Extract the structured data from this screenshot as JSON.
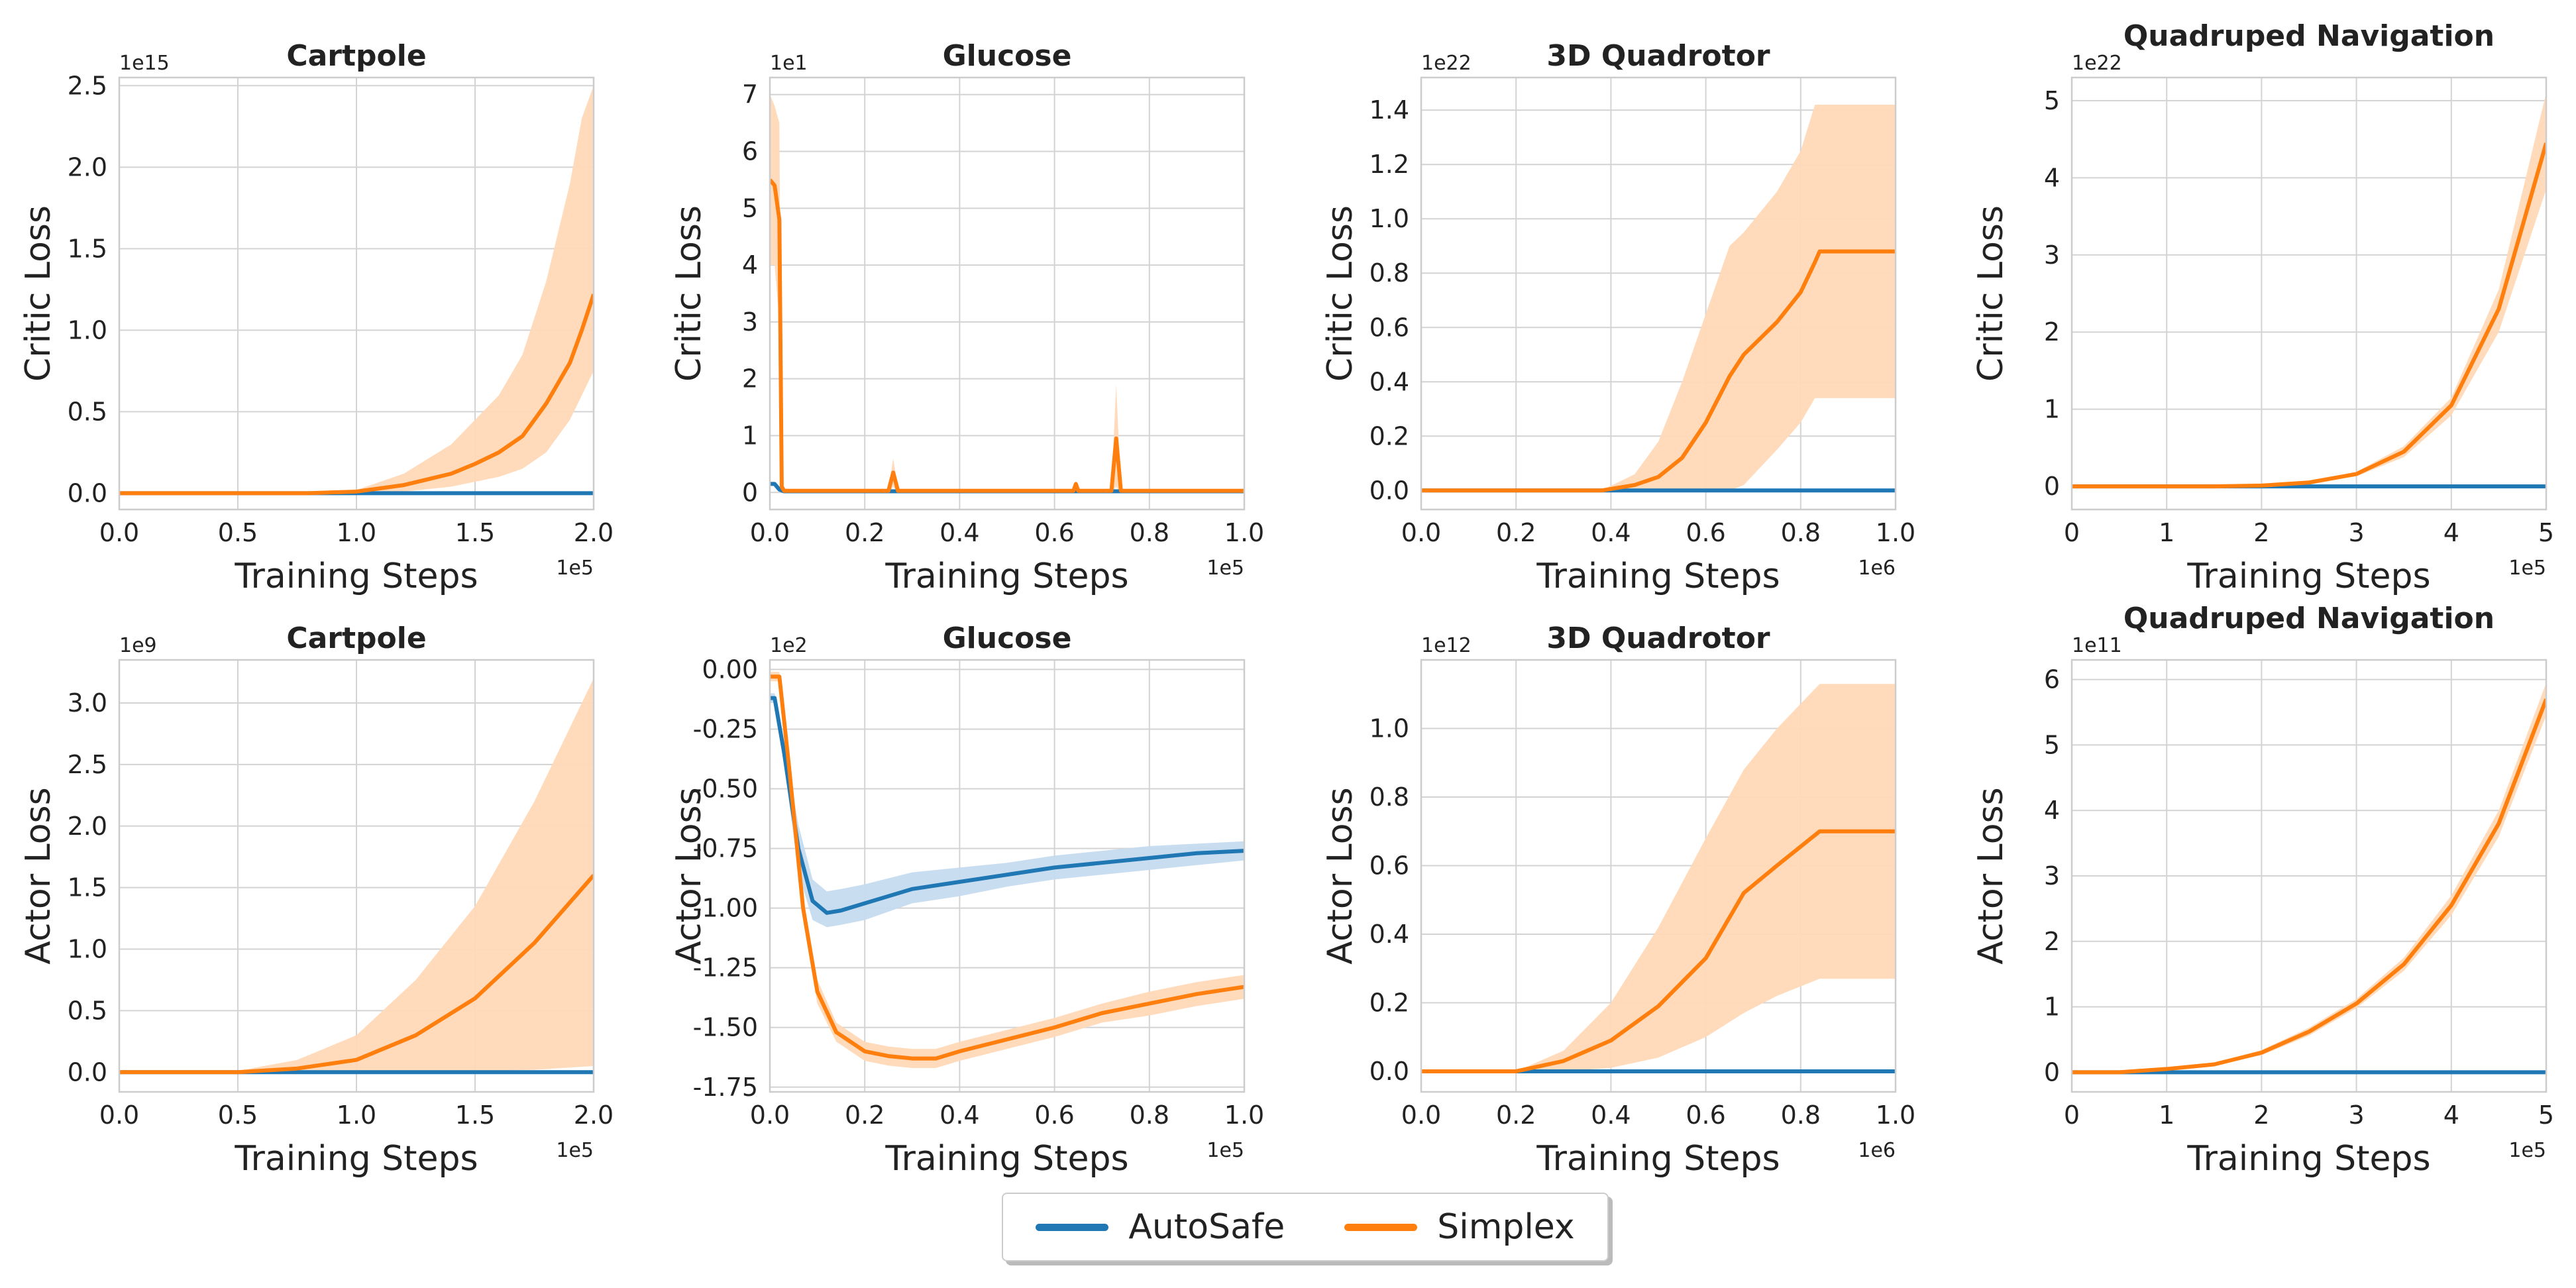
{
  "colors": {
    "autosafe": "#1f77b4",
    "simplex": "#ff7f0e",
    "band": "#ffd9b8",
    "band_blue": "#c6dbef",
    "grid": "#d3d3d3",
    "spine": "#cccccc"
  },
  "legend": {
    "items": [
      {
        "label": "AutoSafe",
        "color": "#1f77b4"
      },
      {
        "label": "Simplex",
        "color": "#ff7f0e"
      }
    ]
  },
  "chart_data": [
    {
      "type": "line",
      "title": "Cartpole",
      "xlabel": "Training Steps",
      "ylabel": "Critic Loss",
      "x_offset": "1e5",
      "y_offset": "1e15",
      "xlim": [
        0,
        2.0
      ],
      "ylim": [
        -0.1,
        2.55
      ],
      "xticks": [
        "0.0",
        "0.5",
        "1.0",
        "1.5",
        "2.0"
      ],
      "yticks": [
        "0.0",
        "0.5",
        "1.0",
        "1.5",
        "2.0",
        "2.5"
      ],
      "series": [
        {
          "name": "AutoSafe",
          "x": [
            0,
            2.0
          ],
          "y": [
            0,
            0
          ]
        },
        {
          "name": "Simplex",
          "x": [
            0,
            0.8,
            1.0,
            1.2,
            1.4,
            1.5,
            1.6,
            1.7,
            1.8,
            1.9,
            1.95,
            2.0
          ],
          "y": [
            0,
            0,
            0.01,
            0.05,
            0.12,
            0.18,
            0.25,
            0.35,
            0.55,
            0.8,
            1.0,
            1.22
          ],
          "band_upper": [
            0,
            0,
            0.02,
            0.12,
            0.3,
            0.45,
            0.6,
            0.85,
            1.3,
            1.9,
            2.3,
            2.5
          ],
          "band_lower": [
            0,
            0,
            0,
            0.01,
            0.04,
            0.07,
            0.1,
            0.15,
            0.25,
            0.45,
            0.6,
            0.75
          ]
        }
      ]
    },
    {
      "type": "line",
      "title": "Glucose",
      "xlabel": "Training Steps",
      "ylabel": "Critic Loss",
      "x_offset": "1e5",
      "y_offset": "1e1",
      "xlim": [
        0,
        1.0
      ],
      "ylim": [
        -0.3,
        7.3
      ],
      "xticks": [
        "0.0",
        "0.2",
        "0.4",
        "0.6",
        "0.8",
        "1.0"
      ],
      "yticks": [
        "0",
        "1",
        "2",
        "3",
        "4",
        "5",
        "6",
        "7"
      ],
      "series": [
        {
          "name": "AutoSafe",
          "x": [
            0,
            0.01,
            0.02,
            0.03,
            1.0
          ],
          "y": [
            0.15,
            0.15,
            0.05,
            0.02,
            0.02
          ]
        },
        {
          "name": "Simplex",
          "x": [
            0,
            0.01,
            0.02,
            0.025,
            0.03,
            0.25,
            0.26,
            0.27,
            0.64,
            0.645,
            0.65,
            0.72,
            0.73,
            0.74,
            1.0
          ],
          "y": [
            5.5,
            5.4,
            4.8,
            0.1,
            0.03,
            0.03,
            0.35,
            0.03,
            0.03,
            0.15,
            0.03,
            0.03,
            0.95,
            0.03,
            0.03
          ],
          "band_upper": [
            7.0,
            6.8,
            6.5,
            0.2,
            0.05,
            0.05,
            0.6,
            0.05,
            0.05,
            0.2,
            0.05,
            0.05,
            1.9,
            0.05,
            0.05
          ],
          "band_lower": [
            4.0,
            4.0,
            3.0,
            0,
            0,
            0,
            0.1,
            0,
            0,
            0.05,
            0,
            0,
            0.1,
            0,
            0
          ]
        }
      ]
    },
    {
      "type": "line",
      "title": "3D Quadrotor",
      "xlabel": "Training Steps",
      "ylabel": "Critic Loss",
      "x_offset": "1e6",
      "y_offset": "1e22",
      "xlim": [
        0,
        1.0
      ],
      "ylim": [
        -0.07,
        1.52
      ],
      "xticks": [
        "0.0",
        "0.2",
        "0.4",
        "0.6",
        "0.8",
        "1.0"
      ],
      "yticks": [
        "0.0",
        "0.2",
        "0.4",
        "0.6",
        "0.8",
        "1.0",
        "1.2",
        "1.4"
      ],
      "series": [
        {
          "name": "AutoSafe",
          "x": [
            0,
            1.0
          ],
          "y": [
            0,
            0
          ]
        },
        {
          "name": "Simplex",
          "x": [
            0,
            0.38,
            0.45,
            0.5,
            0.55,
            0.6,
            0.65,
            0.68,
            0.75,
            0.8,
            0.83,
            0.84,
            1.0
          ],
          "y": [
            0,
            0,
            0.02,
            0.05,
            0.12,
            0.25,
            0.42,
            0.5,
            0.62,
            0.73,
            0.84,
            0.88,
            0.88
          ],
          "band_upper": [
            0,
            0,
            0.06,
            0.18,
            0.4,
            0.65,
            0.9,
            0.95,
            1.1,
            1.25,
            1.42,
            1.42,
            1.42
          ],
          "band_lower": [
            0,
            0,
            0,
            0,
            0,
            0,
            0,
            0.02,
            0.15,
            0.25,
            0.34,
            0.34,
            0.34
          ]
        }
      ]
    },
    {
      "type": "line",
      "title": "Quadruped Navigation",
      "xlabel": "Training Steps",
      "ylabel": "Critic Loss",
      "x_offset": "1e5",
      "y_offset": "1e22",
      "xlim": [
        0,
        5
      ],
      "ylim": [
        -0.3,
        5.3
      ],
      "xticks": [
        "0",
        "1",
        "2",
        "3",
        "4",
        "5"
      ],
      "yticks": [
        "0",
        "1",
        "2",
        "3",
        "4",
        "5"
      ],
      "series": [
        {
          "name": "AutoSafe",
          "x": [
            0,
            5
          ],
          "y": [
            0,
            0
          ]
        },
        {
          "name": "Simplex",
          "x": [
            0,
            1.5,
            2,
            2.5,
            3,
            3.5,
            4,
            4.5,
            5
          ],
          "y": [
            0,
            0,
            0.01,
            0.05,
            0.16,
            0.45,
            1.05,
            2.3,
            4.45
          ],
          "band_upper": [
            0,
            0,
            0.01,
            0.06,
            0.19,
            0.52,
            1.15,
            2.55,
            5.1
          ],
          "band_lower": [
            0,
            0,
            0,
            0.04,
            0.13,
            0.38,
            0.92,
            2.0,
            3.85
          ]
        }
      ]
    },
    {
      "type": "line",
      "title": "Cartpole",
      "xlabel": "Training Steps",
      "ylabel": "Actor Loss",
      "x_offset": "1e5",
      "y_offset": "1e9",
      "xlim": [
        0,
        2.0
      ],
      "ylim": [
        -0.16,
        3.35
      ],
      "xticks": [
        "0.0",
        "0.5",
        "1.0",
        "1.5",
        "2.0"
      ],
      "yticks": [
        "0.0",
        "0.5",
        "1.0",
        "1.5",
        "2.0",
        "2.5",
        "3.0"
      ],
      "series": [
        {
          "name": "AutoSafe",
          "x": [
            0,
            2.0
          ],
          "y": [
            0,
            0
          ]
        },
        {
          "name": "Simplex",
          "x": [
            0,
            0.5,
            0.75,
            1.0,
            1.25,
            1.5,
            1.75,
            2.0
          ],
          "y": [
            0,
            0,
            0.03,
            0.1,
            0.3,
            0.6,
            1.05,
            1.6
          ],
          "band_upper": [
            0,
            0.01,
            0.1,
            0.3,
            0.75,
            1.35,
            2.2,
            3.2
          ],
          "band_lower": [
            0,
            0,
            0,
            0,
            0,
            0.01,
            0.02,
            0.05
          ]
        }
      ]
    },
    {
      "type": "line",
      "title": "Glucose",
      "xlabel": "Training Steps",
      "ylabel": "Actor Loss",
      "x_offset": "1e5",
      "y_offset": "1e2",
      "xlim": [
        0,
        1.0
      ],
      "ylim": [
        -1.77,
        0.04
      ],
      "xticks": [
        "0.0",
        "0.2",
        "0.4",
        "0.6",
        "0.8",
        "1.0"
      ],
      "yticks": [
        "0.00",
        "-0.25",
        "-0.50",
        "-0.75",
        "-1.00",
        "-1.25",
        "-1.50",
        "-1.75"
      ],
      "series": [
        {
          "name": "AutoSafe",
          "x": [
            0,
            0.01,
            0.03,
            0.06,
            0.09,
            0.12,
            0.15,
            0.2,
            0.3,
            0.4,
            0.5,
            0.6,
            0.7,
            0.8,
            0.9,
            1.0
          ],
          "y": [
            -0.12,
            -0.12,
            -0.35,
            -0.75,
            -0.97,
            -1.02,
            -1.01,
            -0.98,
            -0.92,
            -0.89,
            -0.86,
            -0.83,
            -0.81,
            -0.79,
            -0.77,
            -0.76
          ],
          "band_upper": [
            -0.1,
            -0.1,
            -0.3,
            -0.65,
            -0.88,
            -0.93,
            -0.92,
            -0.9,
            -0.85,
            -0.83,
            -0.81,
            -0.78,
            -0.76,
            -0.74,
            -0.73,
            -0.72
          ],
          "band_lower": [
            -0.14,
            -0.14,
            -0.4,
            -0.85,
            -1.05,
            -1.08,
            -1.07,
            -1.05,
            -0.98,
            -0.95,
            -0.91,
            -0.88,
            -0.86,
            -0.84,
            -0.82,
            -0.8
          ]
        },
        {
          "name": "Simplex",
          "x": [
            0,
            0.02,
            0.04,
            0.07,
            0.1,
            0.14,
            0.2,
            0.25,
            0.3,
            0.35,
            0.4,
            0.5,
            0.6,
            0.7,
            0.8,
            0.9,
            1.0
          ],
          "y": [
            -0.03,
            -0.03,
            -0.4,
            -1.0,
            -1.35,
            -1.52,
            -1.6,
            -1.62,
            -1.63,
            -1.63,
            -1.6,
            -1.55,
            -1.5,
            -1.44,
            -1.4,
            -1.36,
            -1.33
          ],
          "band_upper": [
            -0.01,
            -0.01,
            -0.35,
            -0.95,
            -1.3,
            -1.48,
            -1.56,
            -1.58,
            -1.59,
            -1.59,
            -1.56,
            -1.51,
            -1.46,
            -1.4,
            -1.35,
            -1.31,
            -1.28
          ],
          "band_lower": [
            -0.05,
            -0.05,
            -0.45,
            -1.05,
            -1.4,
            -1.56,
            -1.64,
            -1.66,
            -1.67,
            -1.67,
            -1.64,
            -1.59,
            -1.54,
            -1.48,
            -1.45,
            -1.41,
            -1.38
          ]
        }
      ]
    },
    {
      "type": "line",
      "title": "3D Quadrotor",
      "xlabel": "Training Steps",
      "ylabel": "Actor Loss",
      "x_offset": "1e6",
      "y_offset": "1e12",
      "xlim": [
        0,
        1.0
      ],
      "ylim": [
        -0.06,
        1.2
      ],
      "xticks": [
        "0.0",
        "0.2",
        "0.4",
        "0.6",
        "0.8",
        "1.0"
      ],
      "yticks": [
        "0.0",
        "0.2",
        "0.4",
        "0.6",
        "0.8",
        "1.0"
      ],
      "series": [
        {
          "name": "AutoSafe",
          "x": [
            0,
            1.0
          ],
          "y": [
            0,
            0
          ]
        },
        {
          "name": "Simplex",
          "x": [
            0,
            0.2,
            0.3,
            0.4,
            0.5,
            0.6,
            0.68,
            0.75,
            0.84,
            1.0
          ],
          "y": [
            0,
            0,
            0.03,
            0.09,
            0.19,
            0.33,
            0.52,
            0.6,
            0.7,
            0.7
          ],
          "band_upper": [
            0,
            0,
            0.06,
            0.2,
            0.42,
            0.68,
            0.88,
            1.0,
            1.13,
            1.13
          ],
          "band_lower": [
            0,
            0,
            0,
            0.01,
            0.04,
            0.1,
            0.17,
            0.22,
            0.27,
            0.27
          ]
        }
      ]
    },
    {
      "type": "line",
      "title": "Quadruped Navigation",
      "xlabel": "Training Steps",
      "ylabel": "Actor Loss",
      "x_offset": "1e5",
      "y_offset": "1e11",
      "xlim": [
        0,
        5
      ],
      "ylim": [
        -0.3,
        6.3
      ],
      "xticks": [
        "0",
        "1",
        "2",
        "3",
        "4",
        "5"
      ],
      "yticks": [
        "0",
        "1",
        "2",
        "3",
        "4",
        "5",
        "6"
      ],
      "series": [
        {
          "name": "AutoSafe",
          "x": [
            0,
            5
          ],
          "y": [
            0,
            0
          ]
        },
        {
          "name": "Simplex",
          "x": [
            0,
            0.5,
            1,
            1.5,
            2,
            2.5,
            3,
            3.5,
            4,
            4.5,
            5
          ],
          "y": [
            0,
            0,
            0.05,
            0.12,
            0.3,
            0.62,
            1.05,
            1.65,
            2.55,
            3.8,
            5.7
          ],
          "band_upper": [
            0,
            0,
            0.06,
            0.14,
            0.34,
            0.68,
            1.12,
            1.75,
            2.7,
            4.0,
            5.95
          ],
          "band_lower": [
            0,
            0,
            0.04,
            0.1,
            0.26,
            0.56,
            0.98,
            1.55,
            2.4,
            3.6,
            5.45
          ]
        }
      ]
    }
  ]
}
